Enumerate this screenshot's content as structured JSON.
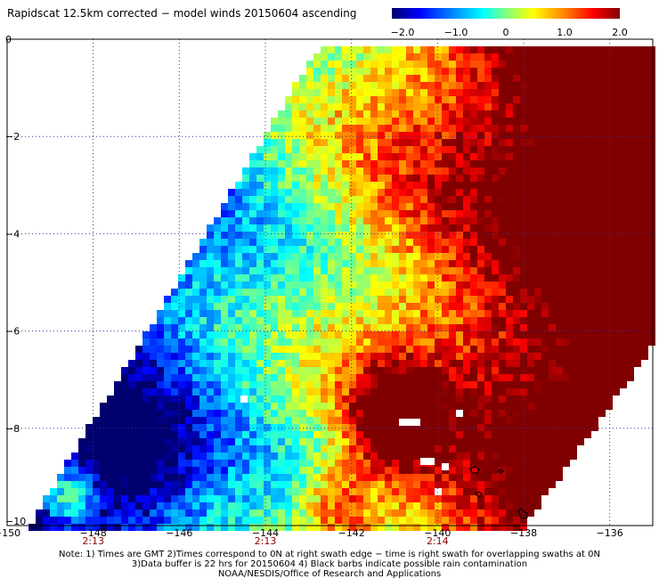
{
  "title": "Rapidscat 12.5km corrected − model winds 20150604 ascending",
  "colorbar": {
    "labels": [
      "−2.0",
      "−1.0",
      "0",
      "1.0",
      "2.0"
    ],
    "values": [
      -2.0,
      -1.0,
      0,
      1.0,
      2.0
    ],
    "range": [
      -2.0,
      2.0
    ],
    "colors": [
      "#00006e",
      "#0000ff",
      "#0080ff",
      "#00ffff",
      "#80ff80",
      "#ffff00",
      "#ff8000",
      "#ff0000",
      "#800000"
    ]
  },
  "axes": {
    "lon_labels": [
      "−150",
      "−148",
      "−146",
      "−144",
      "−142",
      "−140",
      "−138",
      "−136"
    ],
    "lon_values": [
      -150,
      -148,
      -146,
      -144,
      -142,
      -140,
      -138,
      -136
    ],
    "lat_labels": [
      "0",
      "−2",
      "−4",
      "−6",
      "−8",
      "−10"
    ],
    "lat_values": [
      0,
      -2,
      -4,
      -6,
      -8,
      -10
    ],
    "lon_range": [
      -150,
      -135
    ],
    "lat_range": [
      -10,
      0
    ],
    "gridlines": "dotted"
  },
  "times": [
    {
      "label": "2:13",
      "lon": -148
    },
    {
      "label": "2:13",
      "lon": -144
    },
    {
      "label": "2:14",
      "lon": -140
    }
  ],
  "notes": [
    "Note: 1) Times are GMT 2)Times correspond to 0N at right swath edge − time is right swath for overlapping swaths at 0N",
    "3)Data buffer is 22 hrs for 20150604 4) Black barbs indicate possible rain contamination",
    "NOAA/NESDIS/Office of Research and Applications"
  ]
}
